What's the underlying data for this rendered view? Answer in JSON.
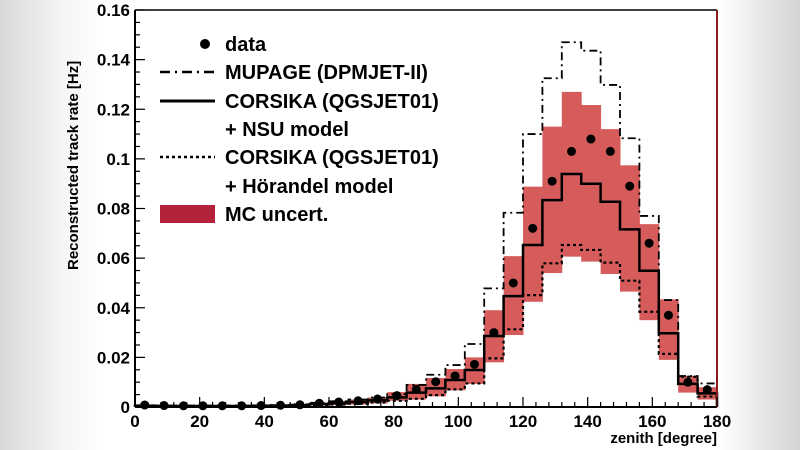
{
  "chart_data": {
    "type": "histogram",
    "xlabel": "zenith [degree]",
    "ylabel": "Reconstructed track rate [Hz]",
    "xlim": [
      0,
      180
    ],
    "ylim": [
      0,
      0.16
    ],
    "x_ticks": [
      "0",
      "20",
      "40",
      "60",
      "80",
      "100",
      "120",
      "140",
      "160",
      "180"
    ],
    "y_ticks": [
      "0",
      "0.02",
      "0.04",
      "0.06",
      "0.08",
      "0.1",
      "0.12",
      "0.14",
      "0.16"
    ],
    "bin_width": 6,
    "bin_centers": [
      3,
      9,
      15,
      21,
      27,
      33,
      39,
      45,
      51,
      57,
      63,
      69,
      75,
      81,
      87,
      93,
      99,
      105,
      111,
      117,
      123,
      129,
      135,
      141,
      147,
      153,
      159,
      165,
      171,
      177
    ],
    "grid": false,
    "legend_placement": "top-left",
    "colors": {
      "band": "#d65c5c",
      "band_legend": "#b3223a",
      "frame_right": "#8b1a1a"
    },
    "series": [
      {
        "name": "data",
        "style": "points",
        "values": [
          0.0008,
          0.0006,
          0.0005,
          0.0005,
          0.0005,
          0.0005,
          0.0006,
          0.0007,
          0.0009,
          0.0015,
          0.002,
          0.0025,
          0.0032,
          0.0046,
          0.0071,
          0.0102,
          0.0125,
          0.0172,
          0.03,
          0.05,
          0.072,
          0.091,
          0.103,
          0.108,
          0.103,
          0.089,
          0.066,
          0.037,
          0.01,
          0.007
        ]
      },
      {
        "name": "MUPAGE (DPMJET-II)",
        "style": "dash-dot",
        "values": [
          0.0007,
          0.0006,
          0.0006,
          0.0006,
          0.0006,
          0.0006,
          0.0007,
          0.0008,
          0.0011,
          0.0017,
          0.0023,
          0.003,
          0.0038,
          0.0052,
          0.0089,
          0.013,
          0.0169,
          0.0254,
          0.0478,
          0.0783,
          0.11,
          0.1325,
          0.147,
          0.1436,
          0.1298,
          0.1083,
          0.077,
          0.0431,
          0.0125,
          0.0095
        ]
      },
      {
        "name": "CORSIKA (QGSJET01) + NSU model",
        "style": "solid",
        "values": [
          0.0005,
          0.0004,
          0.0004,
          0.0004,
          0.0004,
          0.0004,
          0.0005,
          0.0006,
          0.0008,
          0.0012,
          0.0016,
          0.002,
          0.0027,
          0.0039,
          0.0058,
          0.0075,
          0.0109,
          0.0149,
          0.0286,
          0.0447,
          0.0653,
          0.0834,
          0.0939,
          0.09,
          0.0827,
          0.0716,
          0.0549,
          0.0297,
          0.0093,
          0.0055
        ]
      },
      {
        "name": "CORSIKA (QGSJET01) + Hörandel model",
        "style": "dotted",
        "values": [
          0.0003,
          0.0003,
          0.0003,
          0.0003,
          0.0003,
          0.0003,
          0.0003,
          0.0004,
          0.0005,
          0.0008,
          0.001,
          0.0013,
          0.0018,
          0.0025,
          0.0033,
          0.0048,
          0.0071,
          0.0095,
          0.0196,
          0.0313,
          0.0451,
          0.0579,
          0.0653,
          0.0633,
          0.0582,
          0.0509,
          0.0384,
          0.0214,
          0.0122,
          0.0042
        ]
      },
      {
        "name": "MC uncert.",
        "style": "band",
        "lower": [
          0.0002,
          0.0002,
          0.0002,
          0.0002,
          0.0002,
          0.0002,
          0.0002,
          0.0003,
          0.0004,
          0.0006,
          0.0008,
          0.001,
          0.0015,
          0.0025,
          0.003,
          0.0043,
          0.0067,
          0.0093,
          0.018,
          0.029,
          0.0424,
          0.054,
          0.0606,
          0.0586,
          0.0536,
          0.0465,
          0.035,
          0.019,
          0.0058,
          0.003
        ],
        "upper": [
          0.0008,
          0.0007,
          0.0007,
          0.0007,
          0.0007,
          0.0007,
          0.0008,
          0.0009,
          0.0012,
          0.0018,
          0.0024,
          0.003,
          0.0038,
          0.006,
          0.0093,
          0.0117,
          0.0153,
          0.02,
          0.039,
          0.0608,
          0.0888,
          0.113,
          0.127,
          0.1217,
          0.112,
          0.0974,
          0.0737,
          0.0434,
          0.0125,
          0.008
        ]
      }
    ],
    "legend": {
      "entries": [
        "data",
        "MUPAGE (DPMJET-II)",
        "CORSIKA (QGSJET01)",
        "+ NSU model",
        "CORSIKA (QGSJET01)",
        "+ Hörandel model",
        "MC uncert."
      ]
    }
  }
}
